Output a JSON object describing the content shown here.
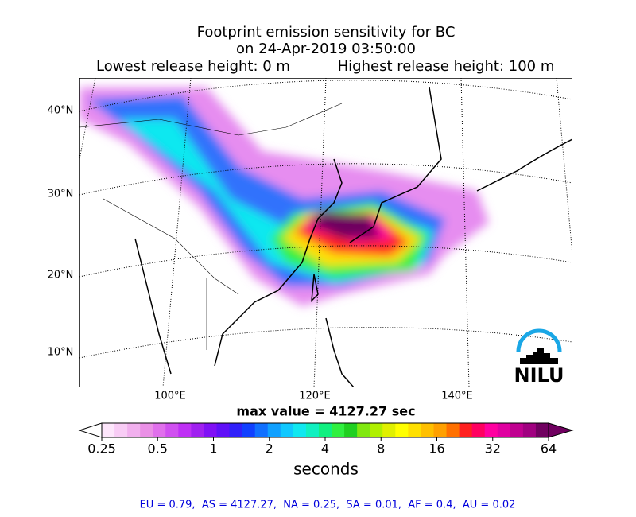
{
  "header": {
    "title_line1": "Footprint emission sensitivity for BC",
    "title_line2": "on 24-Apr-2019 03:50:00",
    "lowest_release": "Lowest release height: 0 m",
    "highest_release": "Highest release height: 100 m"
  },
  "map": {
    "lat_labels": [
      "40°N",
      "30°N",
      "20°N",
      "10°N"
    ],
    "lon_labels": [
      "100°E",
      "120°E",
      "140°E"
    ],
    "logo_text": "NILU"
  },
  "max_value": "max value = 4127.27 sec",
  "colorbar": {
    "ticks": [
      0.25,
      0.5,
      1,
      2,
      4,
      8,
      16,
      32,
      64
    ],
    "label": "seconds",
    "colors": [
      "#fde6fb",
      "#f8ccf5",
      "#f1b0ee",
      "#ea90e6",
      "#e070ec",
      "#d050f0",
      "#bf30f5",
      "#a020f0",
      "#8010f5",
      "#6010f8",
      "#3020fa",
      "#1040ff",
      "#1070ff",
      "#10a0ff",
      "#10c8ff",
      "#10e8f0",
      "#10f0c0",
      "#10f080",
      "#30f040",
      "#20d020",
      "#80e810",
      "#b0f000",
      "#e0f000",
      "#ffff00",
      "#ffe000",
      "#ffc000",
      "#ffa000",
      "#ff7000",
      "#ff2020",
      "#ff0060",
      "#ff00a0",
      "#e000a0",
      "#c00090",
      "#a00080",
      "#700060"
    ],
    "under_color": "#ffffff",
    "over_color": "#700060"
  },
  "footer": "EU = 0.79,  AS = 4127.27,  NA = 0.25,  SA = 0.01,  AF = 0.4,  AU = 0.02"
}
